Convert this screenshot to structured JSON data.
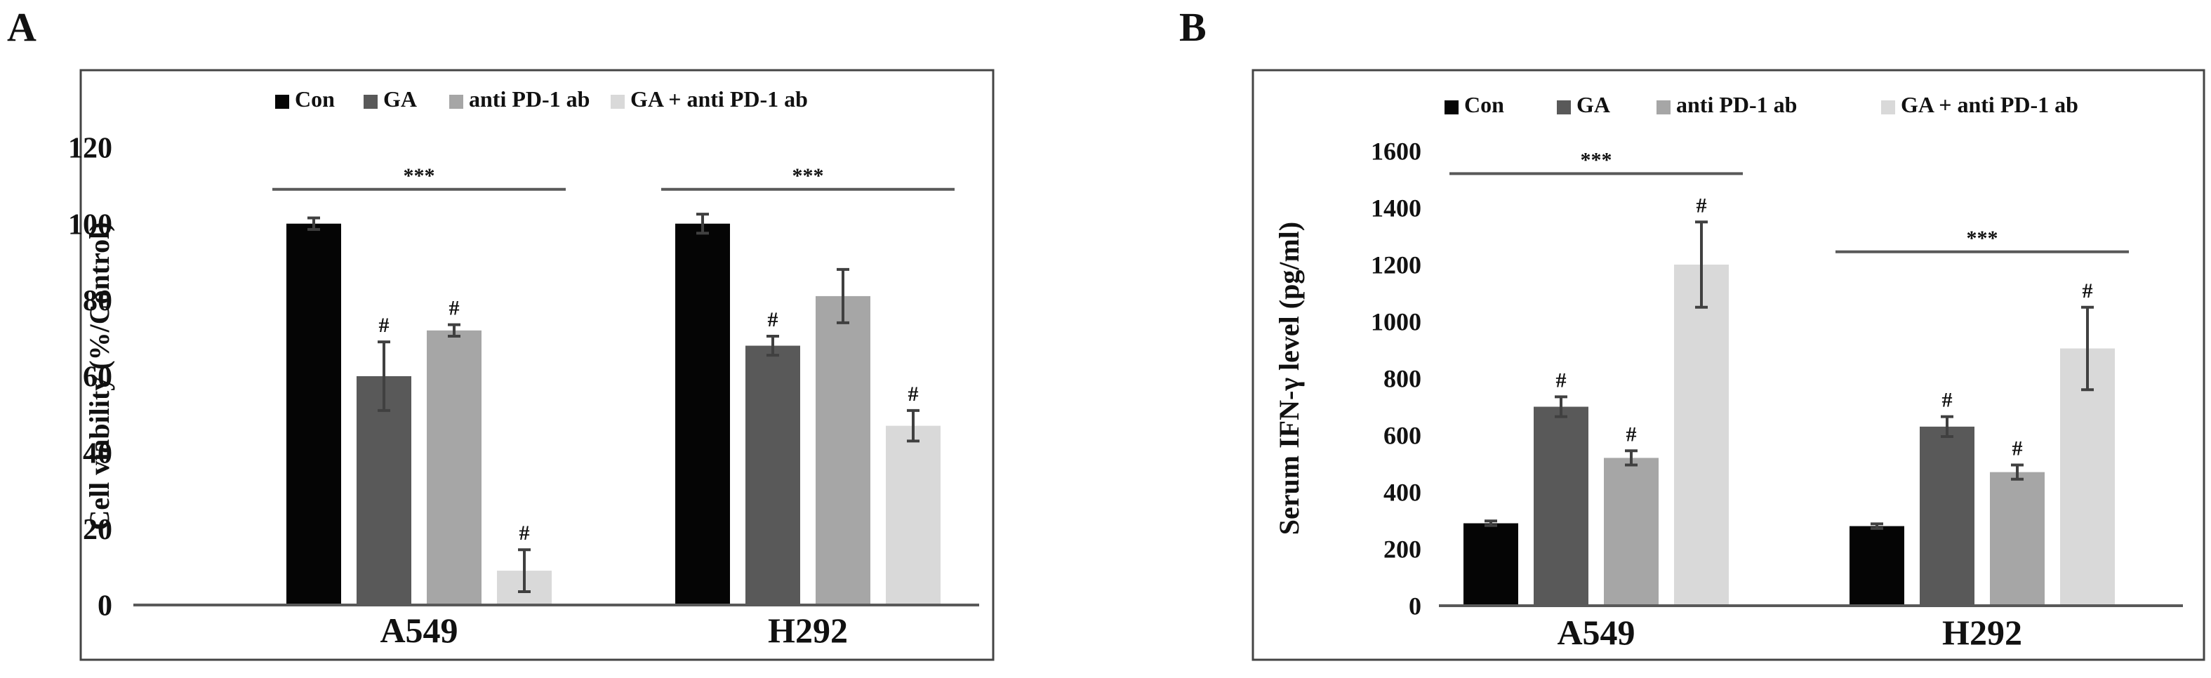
{
  "colors": {
    "con": "#050505",
    "ga": "#595959",
    "anti": "#a6a6a6",
    "combo": "#d9d9d9",
    "axis": "#595959",
    "err": "#404040",
    "frame": "#444444"
  },
  "legend_labels": [
    "Con",
    "GA",
    "anti PD-1 ab",
    "GA + anti PD-1 ab"
  ],
  "chart_data": [
    {
      "panel": "A",
      "type": "bar",
      "title": "",
      "xlabel": "",
      "ylabel": "Cell viability (%/Control)",
      "ylim": [
        0,
        120
      ],
      "yticks": [
        0,
        20,
        40,
        60,
        80,
        100,
        120
      ],
      "categories": [
        "A549",
        "H292"
      ],
      "series": [
        {
          "name": "Con",
          "values": [
            100,
            100
          ],
          "errors": [
            1.5,
            2.5
          ],
          "marks": [
            "",
            ""
          ]
        },
        {
          "name": "GA",
          "values": [
            60,
            68
          ],
          "errors": [
            9,
            2.5
          ],
          "marks": [
            "#",
            "#"
          ]
        },
        {
          "name": "anti PD-1 ab",
          "values": [
            72,
            81
          ],
          "errors": [
            1.5,
            7
          ],
          "marks": [
            "#",
            ""
          ]
        },
        {
          "name": "GA + anti PD-1 ab",
          "values": [
            9,
            47
          ],
          "errors": [
            5.5,
            4
          ],
          "marks": [
            "#",
            "#"
          ]
        }
      ],
      "significance": [
        {
          "label": "***",
          "y": 109,
          "group": 0
        },
        {
          "label": "***",
          "y": 109,
          "group": 1
        }
      ]
    },
    {
      "panel": "B",
      "type": "bar",
      "title": "",
      "xlabel": "",
      "ylabel": "Serum IFN-γ level (pg/ml)",
      "ylim": [
        0,
        1600
      ],
      "yticks": [
        0,
        200,
        400,
        600,
        800,
        1000,
        1200,
        1400,
        1600
      ],
      "categories": [
        "A549",
        "H292"
      ],
      "series": [
        {
          "name": "Con",
          "values": [
            290,
            280
          ],
          "errors": [
            8,
            8
          ],
          "marks": [
            "",
            ""
          ]
        },
        {
          "name": "GA",
          "values": [
            700,
            630
          ],
          "errors": [
            35,
            35
          ],
          "marks": [
            "#",
            "#"
          ]
        },
        {
          "name": "anti PD-1 ab",
          "values": [
            520,
            470
          ],
          "errors": [
            25,
            25
          ],
          "marks": [
            "#",
            "#"
          ]
        },
        {
          "name": "GA + anti PD-1 ab",
          "values": [
            1200,
            905
          ],
          "errors": [
            150,
            145
          ],
          "marks": [
            "#",
            "#"
          ]
        }
      ],
      "significance": [
        {
          "label": "***",
          "y": 1520,
          "group": 0
        },
        {
          "label": "***",
          "y": 1245,
          "group": 1
        }
      ]
    }
  ]
}
